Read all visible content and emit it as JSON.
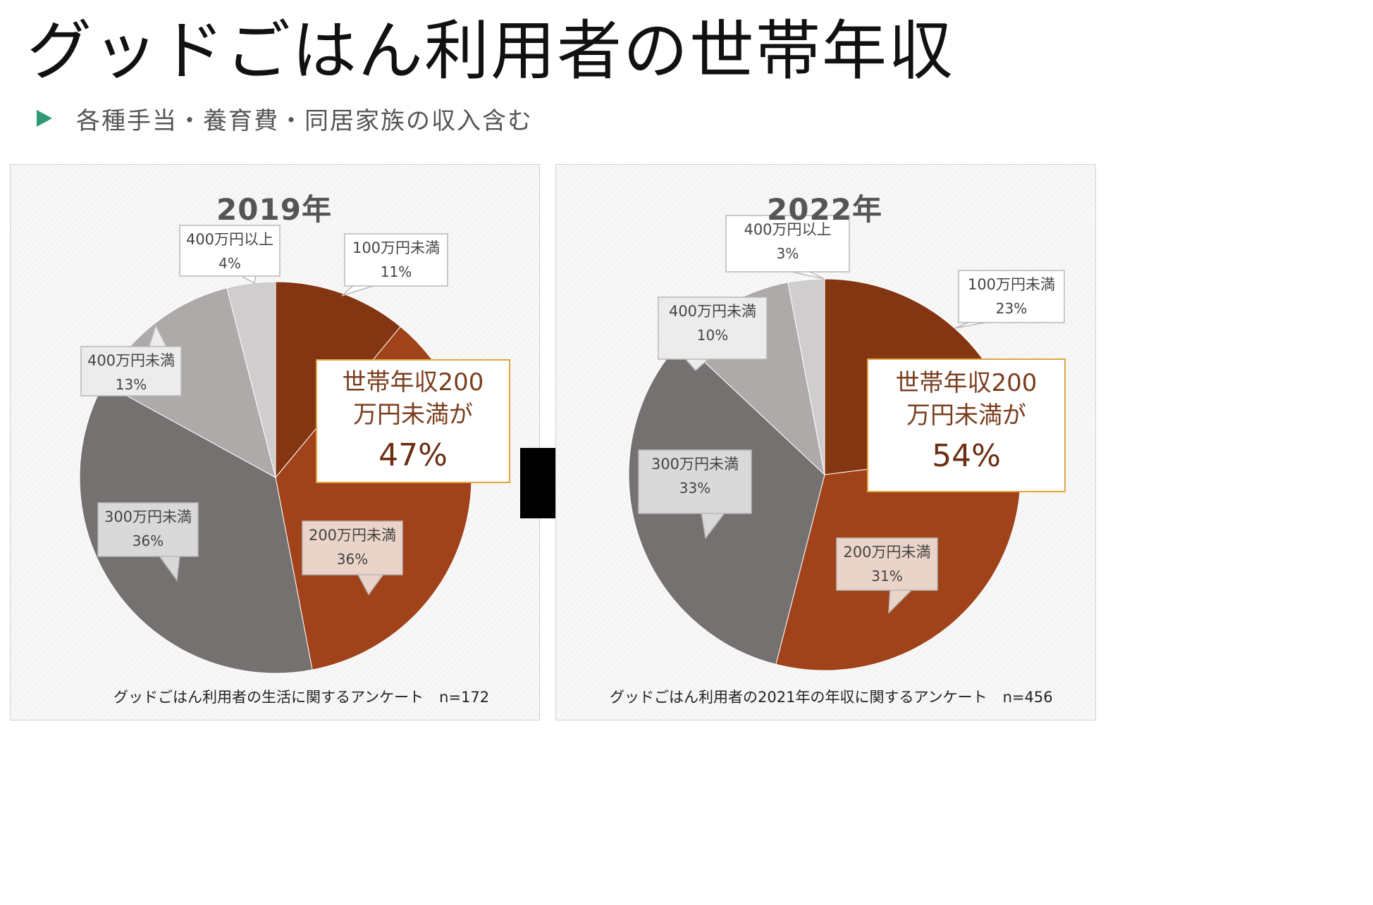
{
  "title": "グッドごはん利用者の世帯年収",
  "subtitle": "各種手当・養育費・同居家族の収入含む",
  "colors": {
    "accent_bullet": "#2e9a78",
    "callout_border": "#e2a640",
    "callout_text": "#7a3e1f"
  },
  "left": {
    "year": "2019年",
    "highlight": {
      "line1": "世帯年収200",
      "line2": "万円未満が",
      "value": "47%"
    },
    "footnote": "グッドごはん利用者の生活に関するアンケート",
    "n": "n=172"
  },
  "right": {
    "year": "2022年",
    "highlight": {
      "line1": "世帯年収200",
      "line2": "万円未満が",
      "value": "54%"
    },
    "footnote": "グッドごはん利用者の2021年の年収に関するアンケート",
    "n": "n=456"
  },
  "chart_data": [
    {
      "type": "pie",
      "title": "2019年",
      "slices": [
        {
          "label": "100万円未満",
          "value": 11,
          "value_label": "11%",
          "color": "#843511"
        },
        {
          "label": "200万円未満",
          "value": 36,
          "value_label": "36%",
          "color": "#a0431a"
        },
        {
          "label": "300万円未満",
          "value": 36,
          "value_label": "36%",
          "color": "#767171"
        },
        {
          "label": "400万円未満",
          "value": 13,
          "value_label": "13%",
          "color": "#aeaaaa"
        },
        {
          "label": "400万円以上",
          "value": 4,
          "value_label": "4%",
          "color": "#cfcdcd"
        }
      ]
    },
    {
      "type": "pie",
      "title": "2022年",
      "slices": [
        {
          "label": "100万円未満",
          "value": 23,
          "value_label": "23%",
          "color": "#843511"
        },
        {
          "label": "200万円未満",
          "value": 31,
          "value_label": "31%",
          "color": "#a0431a"
        },
        {
          "label": "300万円未満",
          "value": 33,
          "value_label": "33%",
          "color": "#767171"
        },
        {
          "label": "400万円未満",
          "value": 10,
          "value_label": "10%",
          "color": "#aeaaaa"
        },
        {
          "label": "400万円以上",
          "value": 3,
          "value_label": "3%",
          "color": "#cfcdcd"
        }
      ]
    }
  ]
}
